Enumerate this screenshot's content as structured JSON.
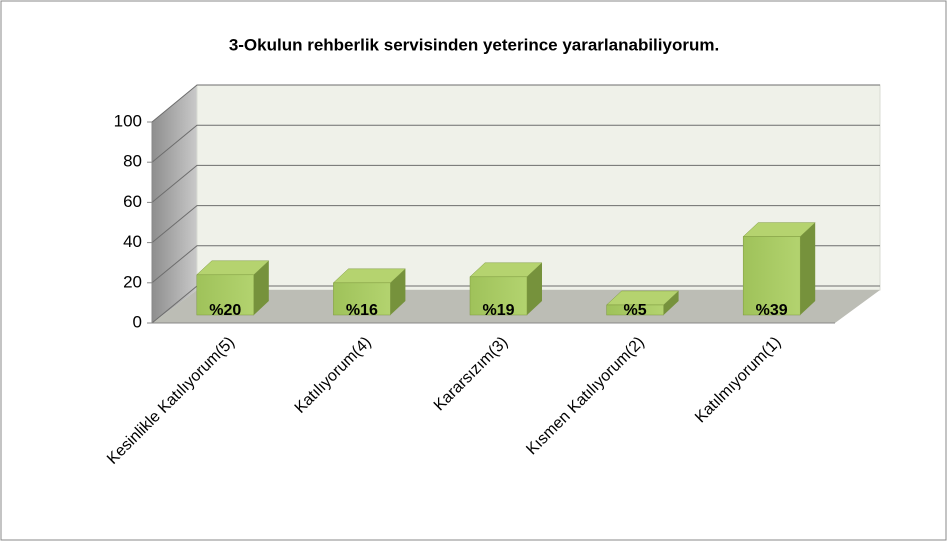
{
  "chart_data": {
    "type": "bar3d",
    "title": "3-Okulun rehberlik servisinden yeterince yararlanabiliyorum.",
    "categories": [
      "Kesinlikle Katılıyorum(5)",
      "Katılıyorum(4)",
      "Kararsızım(3)",
      "Kısmen Katılıyorum(2)",
      "Katılmıyorum(1)"
    ],
    "values": [
      20,
      16,
      19,
      5,
      39
    ],
    "value_labels": [
      "%20",
      "%16",
      "%19",
      "%5",
      "%39"
    ],
    "color": "#9bbb59",
    "ylim": [
      0,
      100
    ],
    "yticks": [
      0,
      20,
      40,
      60,
      80,
      100
    ],
    "grid": true
  }
}
